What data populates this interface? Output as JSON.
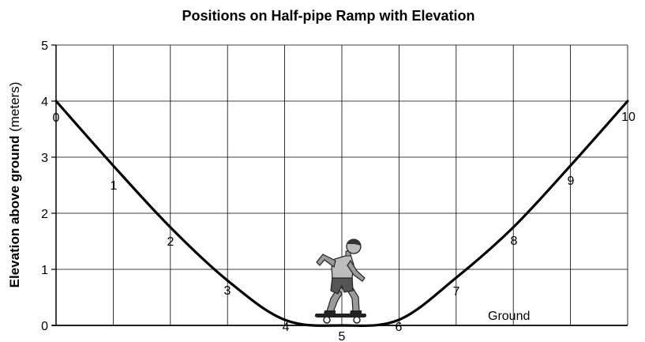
{
  "title": "Positions on Half-pipe Ramp with Elevation",
  "y_axis": {
    "label_bold": "Elevation above ground",
    "label_unit": "(meters)",
    "ticks": [
      "0",
      "1",
      "2",
      "3",
      "4",
      "5"
    ],
    "range": [
      0,
      5
    ]
  },
  "ground_label": "Ground",
  "ramp_positions": [
    {
      "label": "0",
      "elevation": 4.0
    },
    {
      "label": "1",
      "elevation": 2.85
    },
    {
      "label": "2",
      "elevation": 1.75
    },
    {
      "label": "3",
      "elevation": 0.8
    },
    {
      "label": "4",
      "elevation": 0.1
    },
    {
      "label": "5",
      "elevation": 0.0
    },
    {
      "label": "6",
      "elevation": 0.1
    },
    {
      "label": "7",
      "elevation": 0.85
    },
    {
      "label": "8",
      "elevation": 1.75
    },
    {
      "label": "9",
      "elevation": 2.85
    },
    {
      "label": "10",
      "elevation": 4.0
    }
  ],
  "grid": true,
  "figure": "skateboarder-icon"
}
